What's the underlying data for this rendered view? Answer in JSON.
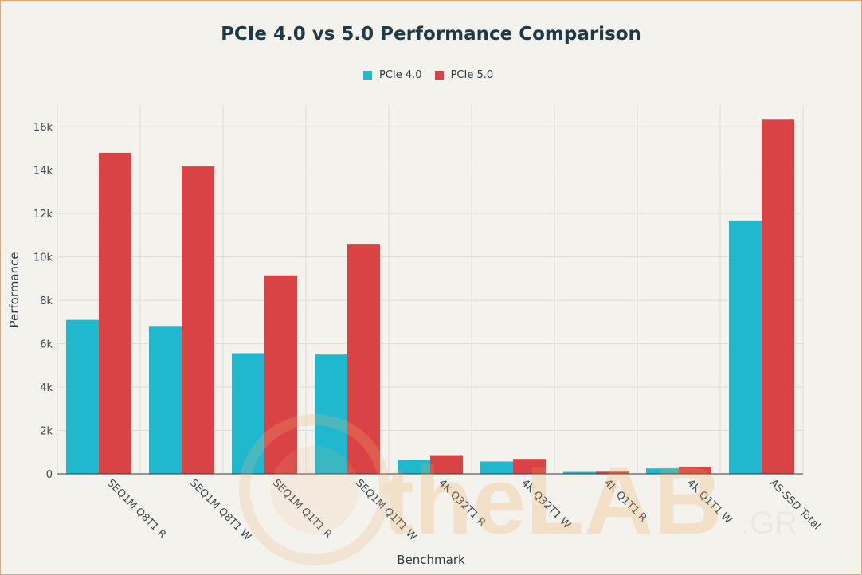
{
  "chart_data": {
    "type": "bar",
    "title": "PCIe 4.0 vs 5.0 Performance Comparison",
    "xlabel": "Benchmark",
    "ylabel": "Performance",
    "ylim": [
      0,
      17000
    ],
    "yticks": [
      0,
      2000,
      4000,
      6000,
      8000,
      10000,
      12000,
      14000,
      16000
    ],
    "ytick_labels": [
      "0",
      "2k",
      "4k",
      "6k",
      "8k",
      "10k",
      "12k",
      "14k",
      "16k"
    ],
    "categories": [
      "SEQ1M Q8T1 R",
      "SEQ1M Q8T1 W",
      "SEQ1M Q1T1 R",
      "SEQ1M Q1T1 W",
      "4K Q32T1 R",
      "4K Q32T1 W",
      "4K Q1T1 R",
      "4K Q1T1 W",
      "AS-SSD Total"
    ],
    "series": [
      {
        "name": "PCIe 4.0",
        "color": "#1fb8ce",
        "values": [
          7100,
          6820,
          5560,
          5500,
          640,
          570,
          90,
          250,
          11680
        ]
      },
      {
        "name": "PCIe 5.0",
        "color": "#da4345",
        "values": [
          14800,
          14170,
          9150,
          10570,
          860,
          690,
          100,
          330,
          16330
        ]
      }
    ],
    "grid": true,
    "legend_position": "top-center"
  },
  "watermark": {
    "text": "theLAB",
    "suffix": ".GR"
  }
}
